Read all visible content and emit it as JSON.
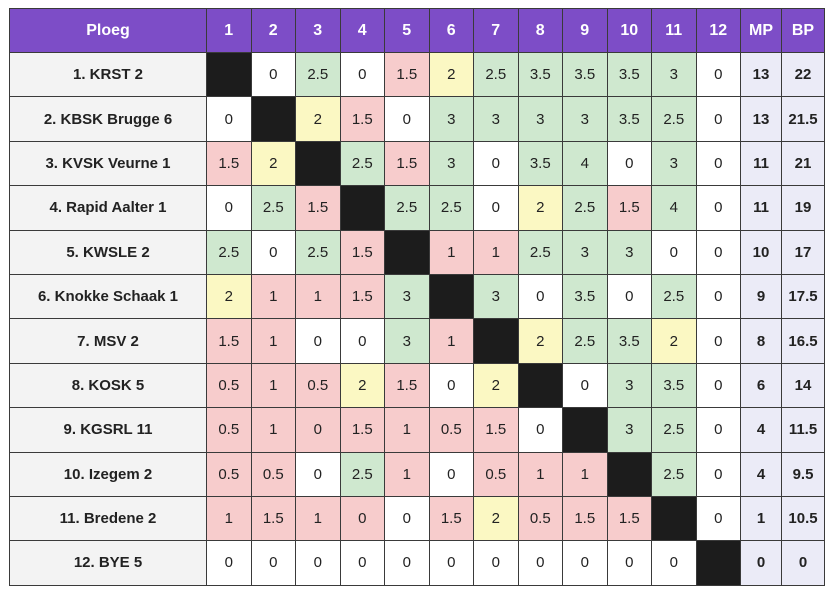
{
  "header": {
    "team_label": "Ploeg",
    "rounds": [
      "1",
      "2",
      "3",
      "4",
      "5",
      "6",
      "7",
      "8",
      "9",
      "10",
      "11",
      "12"
    ],
    "mp_label": "MP",
    "bp_label": "BP"
  },
  "colors": {
    "header_bg": "#7d4dc7",
    "win": "#cfe8cf",
    "draw": "#fbf8c3",
    "loss": "#f7cccc",
    "self": "#1c1c1c",
    "team_bg": "#f3f3f3",
    "points_bg": "#ebebf7"
  },
  "rows": [
    {
      "team": "1. KRST 2",
      "cells": [
        null,
        "0",
        "2.5",
        "0",
        "1.5",
        "2",
        "2.5",
        "3.5",
        "3.5",
        "3.5",
        "3",
        "0"
      ],
      "mp": "13",
      "bp": "22"
    },
    {
      "team": "2. KBSK Brugge 6",
      "cells": [
        "0",
        null,
        "2",
        "1.5",
        "0",
        "3",
        "3",
        "3",
        "3",
        "3.5",
        "2.5",
        "0"
      ],
      "mp": "13",
      "bp": "21.5"
    },
    {
      "team": "3. KVSK Veurne 1",
      "cells": [
        "1.5",
        "2",
        null,
        "2.5",
        "1.5",
        "3",
        "0",
        "3.5",
        "4",
        "0",
        "3",
        "0"
      ],
      "mp": "11",
      "bp": "21"
    },
    {
      "team": "4. Rapid Aalter 1",
      "cells": [
        "0",
        "2.5",
        "1.5",
        null,
        "2.5",
        "2.5",
        "0",
        "2",
        "2.5",
        "1.5",
        "4",
        "0"
      ],
      "mp": "11",
      "bp": "19"
    },
    {
      "team": "5. KWSLE 2",
      "cells": [
        "2.5",
        "0",
        "2.5",
        "1.5",
        null,
        "1",
        "1",
        "2.5",
        "3",
        "3",
        "0",
        "0"
      ],
      "mp": "10",
      "bp": "17"
    },
    {
      "team": "6. Knokke Schaak 1",
      "cells": [
        "2",
        "1",
        "1",
        "1.5",
        "3",
        null,
        "3",
        "0",
        "3.5",
        "0",
        "2.5",
        "0"
      ],
      "mp": "9",
      "bp": "17.5"
    },
    {
      "team": "7. MSV 2",
      "cells": [
        "1.5",
        "1",
        "0",
        "0",
        "3",
        "1",
        null,
        "2",
        "2.5",
        "3.5",
        "2",
        "0"
      ],
      "mp": "8",
      "bp": "16.5"
    },
    {
      "team": "8. KOSK 5",
      "cells": [
        "0.5",
        "1",
        "0.5",
        "2",
        "1.5",
        "0",
        "2",
        null,
        "0",
        "3",
        "3.5",
        "0"
      ],
      "mp": "6",
      "bp": "14"
    },
    {
      "team": "9. KGSRL 11",
      "cells": [
        "0.5",
        "1",
        "0",
        "1.5",
        "1",
        "0.5",
        "1.5",
        "0",
        null,
        "3",
        "2.5",
        "0"
      ],
      "mp": "4",
      "bp": "11.5"
    },
    {
      "team": "10. Izegem 2",
      "cells": [
        "0.5",
        "0.5",
        "0",
        "2.5",
        "1",
        "0",
        "0.5",
        "1",
        "1",
        null,
        "2.5",
        "0"
      ],
      "mp": "4",
      "bp": "9.5"
    },
    {
      "team": "11. Bredene 2",
      "cells": [
        "1",
        "1.5",
        "1",
        "0",
        "0",
        "1.5",
        "2",
        "0.5",
        "1.5",
        "1.5",
        null,
        "0"
      ],
      "mp": "1",
      "bp": "10.5"
    },
    {
      "team": "12. BYE 5",
      "cells": [
        "0",
        "0",
        "0",
        "0",
        "0",
        "0",
        "0",
        "0",
        "0",
        "0",
        "0",
        null
      ],
      "mp": "0",
      "bp": "0"
    }
  ]
}
